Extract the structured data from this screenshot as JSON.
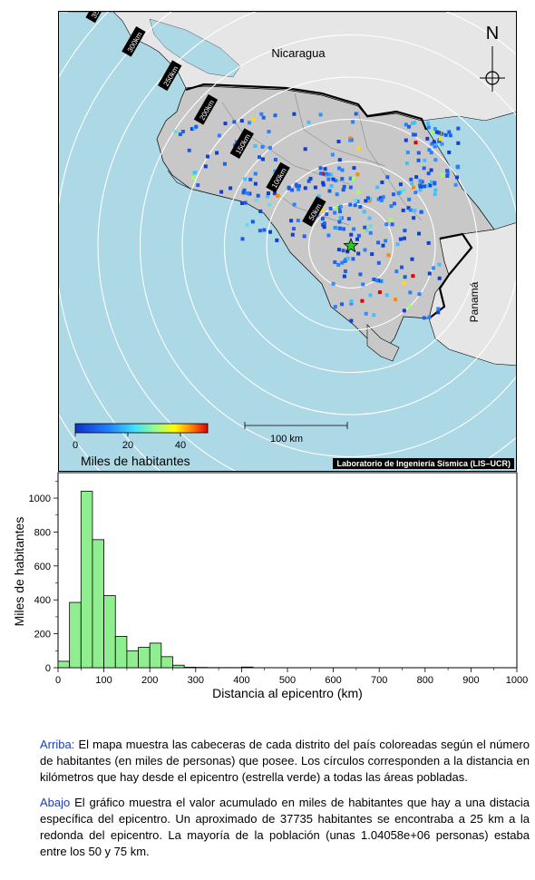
{
  "map": {
    "countries": {
      "nicaragua": "Nicaragua",
      "panama": "Panamá"
    },
    "north_label": "N",
    "ring_labels": [
      "50km",
      "100km",
      "150km",
      "200km",
      "250km",
      "300km",
      "350km",
      "400km"
    ],
    "colorbar": {
      "ticks": [
        "0",
        "20",
        "40"
      ],
      "title": "Miles de habitantes"
    },
    "scalebar_label": "100 km",
    "credit": "Laboratorio de Ingeniería Sísmica (LIS–UCR)",
    "colors": {
      "sea": "#add8e6",
      "land_costa_rica": "#c8c8c8",
      "land_other": "#e6e6e6",
      "epicenter": "#22cc22"
    }
  },
  "chart_data": {
    "type": "bar",
    "xlabel": "Distancia al epicentro (km)",
    "ylabel": "Miles de habitantes",
    "xlim": [
      0,
      1000
    ],
    "ylim": [
      0,
      1150
    ],
    "x_ticks": [
      0,
      100,
      200,
      300,
      400,
      500,
      600,
      700,
      800,
      900,
      1000
    ],
    "y_ticks": [
      0,
      200,
      400,
      600,
      800,
      1000
    ],
    "bin_width": 25,
    "bins": [
      0,
      25,
      50,
      75,
      100,
      125,
      150,
      175,
      200,
      225,
      250,
      275,
      300,
      325,
      350,
      375,
      400
    ],
    "values": [
      38,
      385,
      1040,
      755,
      425,
      185,
      100,
      120,
      145,
      65,
      15,
      3,
      2,
      1,
      1,
      1,
      4
    ],
    "bar_color": "#90ee90"
  },
  "caption": {
    "p1_lead": "Arriba:",
    "p1_text": " El mapa muestra las cabeceras de cada distrito del país coloreadas según el número de habitantes (en miles de personas) que posee.  Los círculos corresponden a la distancia en kilómetros que hay desde el epicentro (estrella verde) a todas las áreas pobladas.",
    "p2_lead": "Abajo",
    "p2_text": " El gráfico muestra el valor acumulado en miles de habitantes que hay a una distacia específica del epicentro.  Un aproximado de 37735 habitantes se encontraba a 25 km a la redonda del epicentro.  La mayoría de la población (unas 1.04058e+06 personas) estaba entre los 50 y 75 km."
  }
}
